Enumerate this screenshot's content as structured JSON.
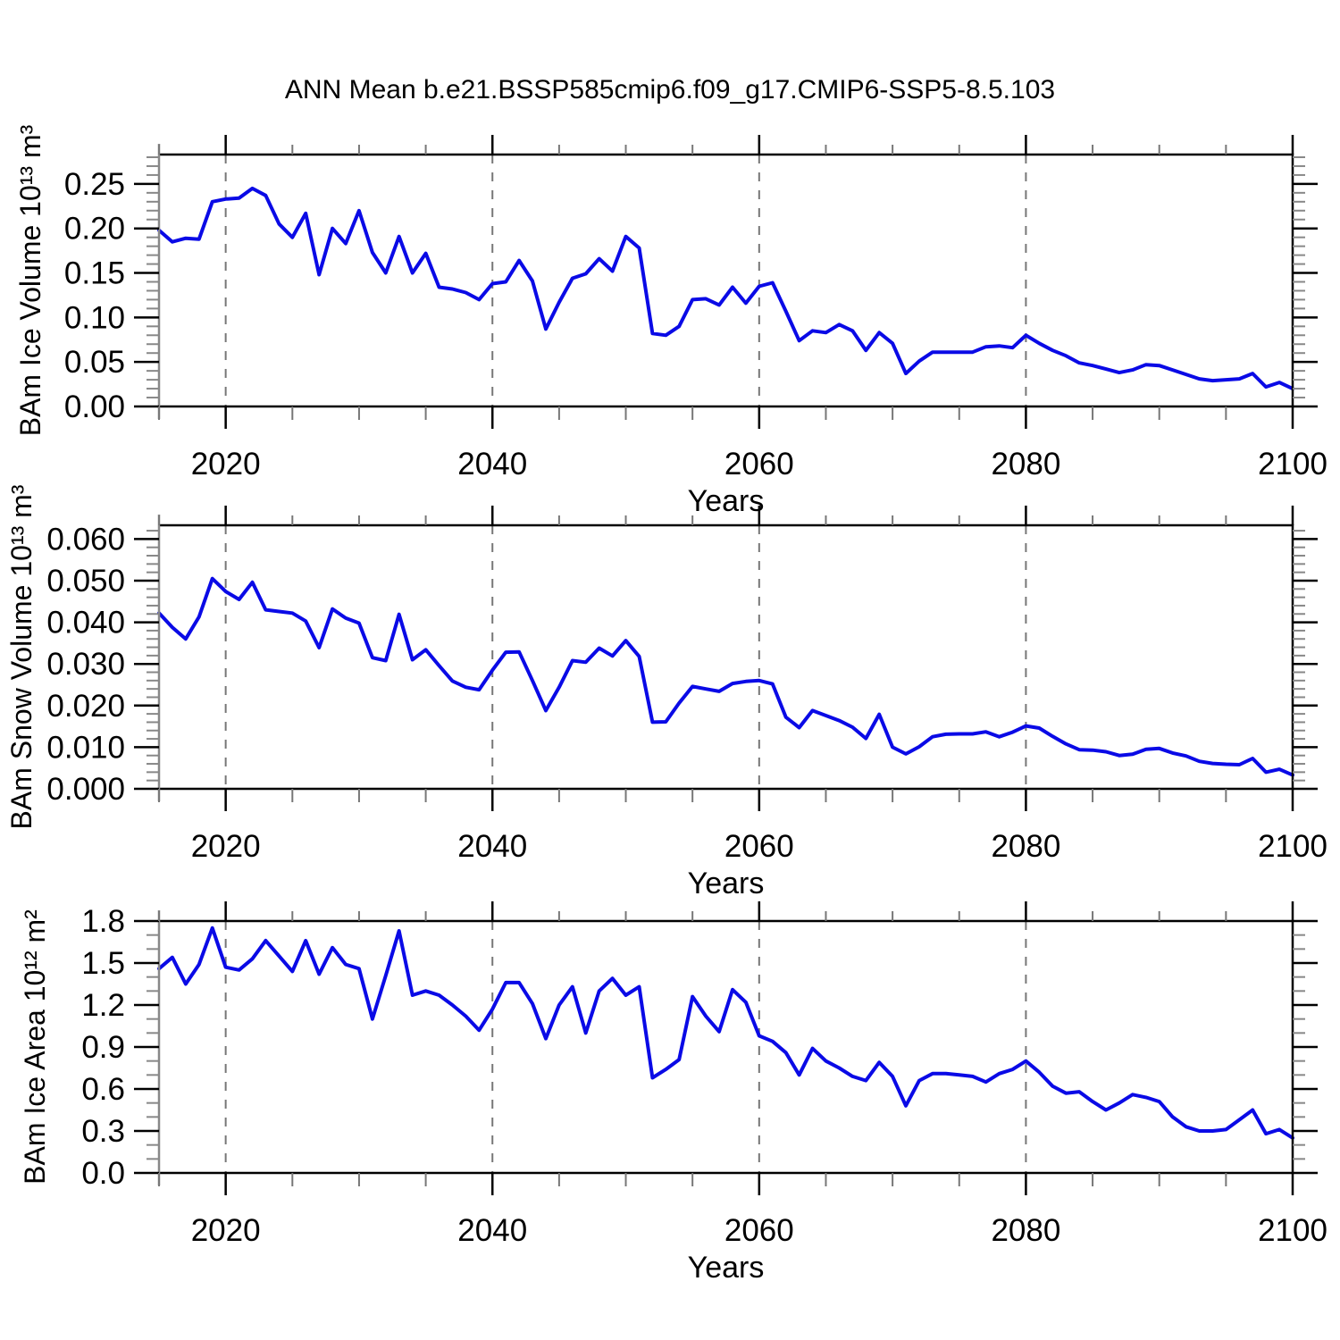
{
  "title": "ANN Mean b.e21.BSSP585cmip6.f09_g17.CMIP6-SSP5-8.5.103",
  "style": {
    "line_color": "#0A0AE6",
    "grid_color": "#777777",
    "frame_color": "#000000",
    "major_tick_color": "#000000",
    "minor_tick_color": "#888888",
    "axis_line_color": "#888888",
    "background": "#ffffff"
  },
  "x_axis": {
    "label": "Years",
    "ticks": [
      2020,
      2040,
      2060,
      2080,
      2100
    ],
    "minor_step": 5,
    "gridlines": [
      2020,
      2040,
      2060,
      2080
    ],
    "range": [
      2015,
      2100
    ]
  },
  "years": [
    2015,
    2016,
    2017,
    2018,
    2019,
    2020,
    2021,
    2022,
    2023,
    2024,
    2025,
    2026,
    2027,
    2028,
    2029,
    2030,
    2031,
    2032,
    2033,
    2034,
    2035,
    2036,
    2037,
    2038,
    2039,
    2040,
    2041,
    2042,
    2043,
    2044,
    2045,
    2046,
    2047,
    2048,
    2049,
    2050,
    2051,
    2052,
    2053,
    2054,
    2055,
    2056,
    2057,
    2058,
    2059,
    2060,
    2061,
    2062,
    2063,
    2064,
    2065,
    2066,
    2067,
    2068,
    2069,
    2070,
    2071,
    2072,
    2073,
    2074,
    2075,
    2076,
    2077,
    2078,
    2079,
    2080,
    2081,
    2082,
    2083,
    2084,
    2085,
    2086,
    2087,
    2088,
    2089,
    2090,
    2091,
    2092,
    2093,
    2094,
    2095,
    2096,
    2097,
    2098,
    2099,
    2100
  ],
  "chart_data": [
    {
      "type": "line",
      "series_name": "BAm Ice Volume",
      "ylabel": "BAm Ice Volume 10¹³ m³",
      "xlabel": "Years",
      "ylim": [
        0,
        0.283
      ],
      "yticks": [
        0,
        0.05,
        0.1,
        0.15,
        0.2,
        0.25
      ],
      "ytick_labels": [
        "0.00",
        "0.05",
        "0.10",
        "0.15",
        "0.20",
        "0.25"
      ],
      "yminor_step": 0.01,
      "values": [
        0.198,
        0.185,
        0.189,
        0.188,
        0.23,
        0.233,
        0.234,
        0.245,
        0.237,
        0.205,
        0.19,
        0.217,
        0.148,
        0.2,
        0.183,
        0.22,
        0.173,
        0.15,
        0.191,
        0.15,
        0.172,
        0.134,
        0.132,
        0.128,
        0.12,
        0.138,
        0.14,
        0.164,
        0.141,
        0.087,
        0.117,
        0.144,
        0.149,
        0.166,
        0.152,
        0.191,
        0.178,
        0.082,
        0.08,
        0.09,
        0.12,
        0.121,
        0.114,
        0.134,
        0.116,
        0.135,
        0.139,
        0.107,
        0.074,
        0.085,
        0.083,
        0.092,
        0.085,
        0.063,
        0.083,
        0.071,
        0.037,
        0.051,
        0.061,
        0.061,
        0.061,
        0.061,
        0.067,
        0.068,
        0.066,
        0.08,
        0.071,
        0.063,
        0.057,
        0.049,
        0.046,
        0.042,
        0.038,
        0.041,
        0.047,
        0.046,
        0.041,
        0.036,
        0.031,
        0.029,
        0.03,
        0.031,
        0.037,
        0.022,
        0.027,
        0.02
      ]
    },
    {
      "type": "line",
      "series_name": "BAm Snow Volume",
      "ylabel": "BAm Snow Volume 10¹³ m³",
      "xlabel": "Years",
      "ylim": [
        0,
        0.0633
      ],
      "yticks": [
        0,
        0.01,
        0.02,
        0.03,
        0.04,
        0.05,
        0.06
      ],
      "ytick_labels": [
        "0.000",
        "0.010",
        "0.020",
        "0.030",
        "0.040",
        "0.050",
        "0.060"
      ],
      "yminor_step": 0.002,
      "values": [
        0.0422,
        0.0388,
        0.036,
        0.0413,
        0.0505,
        0.0474,
        0.0455,
        0.0496,
        0.043,
        0.0426,
        0.0422,
        0.0403,
        0.0339,
        0.0432,
        0.041,
        0.0398,
        0.0315,
        0.0308,
        0.0419,
        0.031,
        0.0334,
        0.0296,
        0.0259,
        0.0244,
        0.0238,
        0.0285,
        0.0328,
        0.0329,
        0.026,
        0.0188,
        0.0244,
        0.0308,
        0.0304,
        0.0338,
        0.0319,
        0.0356,
        0.0318,
        0.016,
        0.0161,
        0.0206,
        0.0246,
        0.024,
        0.0234,
        0.0253,
        0.0258,
        0.026,
        0.0252,
        0.0172,
        0.0147,
        0.0188,
        0.0176,
        0.0164,
        0.0148,
        0.0121,
        0.0179,
        0.01,
        0.0084,
        0.0101,
        0.0125,
        0.0131,
        0.0132,
        0.0132,
        0.0137,
        0.0125,
        0.0136,
        0.0151,
        0.0146,
        0.0126,
        0.0108,
        0.0094,
        0.0093,
        0.0089,
        0.008,
        0.0083,
        0.0095,
        0.0097,
        0.0086,
        0.0079,
        0.0066,
        0.0061,
        0.0059,
        0.0058,
        0.0073,
        0.004,
        0.0047,
        0.0033
      ]
    },
    {
      "type": "line",
      "series_name": "BAm Ice Area",
      "ylabel": "BAm Ice Area 10¹² m²",
      "xlabel": "Years",
      "ylim": [
        0,
        1.8
      ],
      "yticks": [
        0,
        0.3,
        0.6,
        0.9,
        1.2,
        1.5,
        1.8
      ],
      "ytick_labels": [
        "0.0",
        "0.3",
        "0.6",
        "0.9",
        "1.2",
        "1.5",
        "1.8"
      ],
      "yminor_step": 0.1,
      "values": [
        1.46,
        1.54,
        1.35,
        1.49,
        1.75,
        1.47,
        1.45,
        1.53,
        1.66,
        1.55,
        1.44,
        1.66,
        1.42,
        1.61,
        1.49,
        1.46,
        1.1,
        1.41,
        1.73,
        1.27,
        1.3,
        1.27,
        1.2,
        1.12,
        1.02,
        1.17,
        1.36,
        1.36,
        1.21,
        0.96,
        1.2,
        1.33,
        1.0,
        1.3,
        1.39,
        1.27,
        1.33,
        0.68,
        0.74,
        0.81,
        1.26,
        1.12,
        1.01,
        1.31,
        1.22,
        0.98,
        0.94,
        0.86,
        0.7,
        0.89,
        0.8,
        0.75,
        0.69,
        0.66,
        0.79,
        0.69,
        0.48,
        0.66,
        0.71,
        0.71,
        0.7,
        0.69,
        0.65,
        0.71,
        0.74,
        0.8,
        0.72,
        0.62,
        0.57,
        0.58,
        0.51,
        0.45,
        0.5,
        0.56,
        0.54,
        0.51,
        0.4,
        0.33,
        0.3,
        0.3,
        0.31,
        0.38,
        0.45,
        0.28,
        0.31,
        0.25
      ]
    }
  ]
}
